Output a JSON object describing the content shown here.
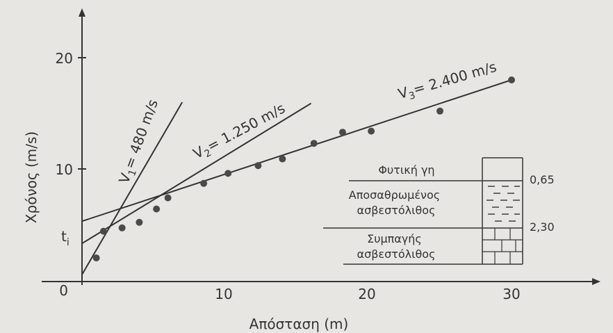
{
  "chart_data": {
    "type": "scatter",
    "title": "",
    "xlabel": "Απόσταση (m)",
    "ylabel": "Χρόνος (m/s)",
    "xlim": [
      0,
      36
    ],
    "ylim": [
      0,
      25
    ],
    "x_ticks": [
      "10",
      "20",
      "30"
    ],
    "y_ticks": [
      "0",
      "10",
      "20"
    ],
    "ti_label": "t",
    "ti_sub": "i",
    "points": [
      {
        "x": 1.0,
        "y": 2.0
      },
      {
        "x": 1.5,
        "y": 4.4
      },
      {
        "x": 2.8,
        "y": 4.7
      },
      {
        "x": 4.0,
        "y": 5.2
      },
      {
        "x": 5.2,
        "y": 6.4
      },
      {
        "x": 6.0,
        "y": 7.4
      },
      {
        "x": 8.5,
        "y": 8.7
      },
      {
        "x": 10.2,
        "y": 9.6
      },
      {
        "x": 12.3,
        "y": 10.3
      },
      {
        "x": 14.0,
        "y": 10.9
      },
      {
        "x": 16.2,
        "y": 12.3
      },
      {
        "x": 18.2,
        "y": 13.3
      },
      {
        "x": 20.2,
        "y": 13.4
      },
      {
        "x": 25.0,
        "y": 15.2
      },
      {
        "x": 30.0,
        "y": 18.0
      }
    ],
    "fit_lines": [
      {
        "prefix": "V",
        "sub": "1",
        "suffix": "= 480 m/s",
        "x1": 0,
        "y1": 0.5,
        "x2": 7.0,
        "y2": 16.0
      },
      {
        "prefix": "V",
        "sub": "2",
        "suffix": "= 1.250 m/s",
        "x1": 0,
        "y1": 3.3,
        "x2": 16.0,
        "y2": 15.9
      },
      {
        "prefix": "V",
        "sub": "3",
        "suffix": "= 2.400 m/s",
        "x1": 0,
        "y1": 5.3,
        "x2": 30.0,
        "y2": 18.0
      }
    ],
    "soil_column": {
      "layers": [
        {
          "name": "Φυτική γη",
          "pattern": "plain"
        },
        {
          "name": "Αποσαθρωμένος ασβεστόλιθος",
          "pattern": "dashes"
        },
        {
          "name": "Συμπαγής ασβεστόλιθος",
          "pattern": "bricks"
        }
      ],
      "depths": [
        "0,65",
        "2,30"
      ]
    }
  }
}
